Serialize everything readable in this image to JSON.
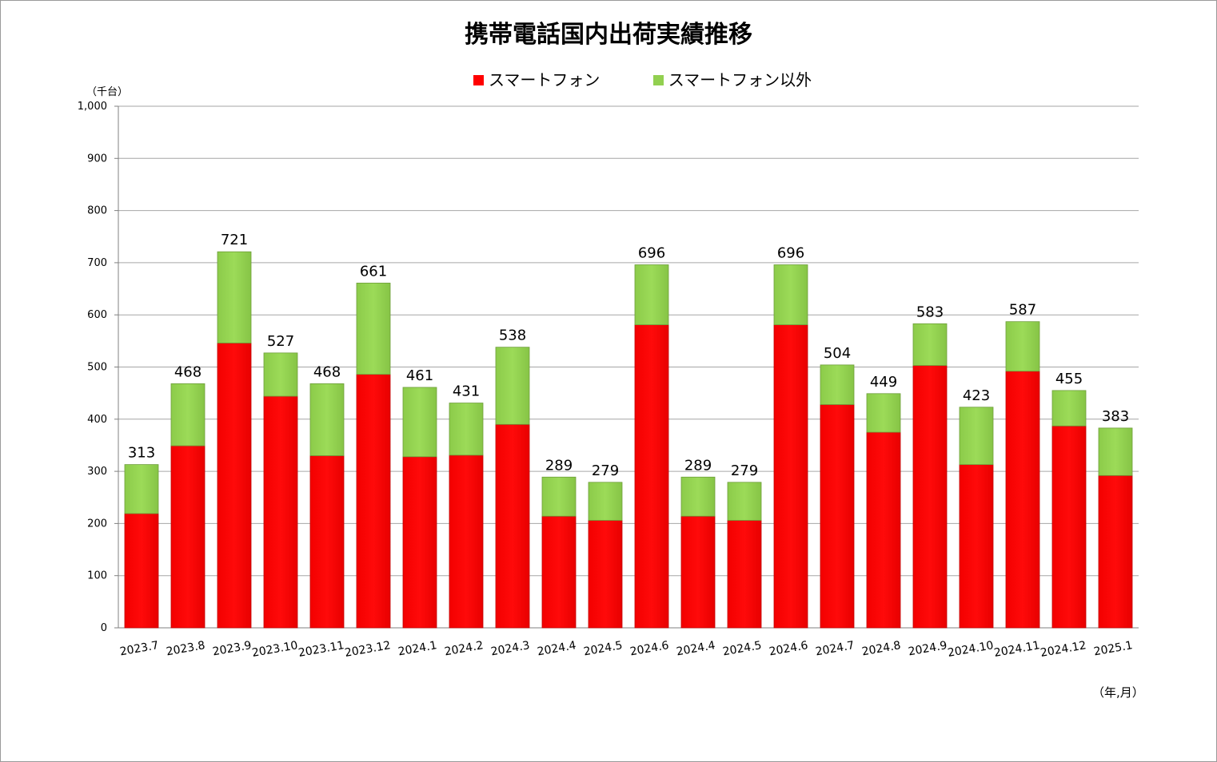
{
  "chart_data": {
    "type": "bar",
    "stacked": true,
    "title": "携帯電話国内出荷実績推移",
    "ylabel": "（千台）",
    "xlabel": "（年,月）",
    "ylim": [
      0,
      1000
    ],
    "yticks": [
      "0",
      "100",
      "200",
      "300",
      "400",
      "500",
      "600",
      "700",
      "800",
      "900",
      "1,000"
    ],
    "grid": true,
    "legend_position": "top",
    "categories": [
      "2023.7",
      "2023.8",
      "2023.9",
      "2023.10",
      "2023.11",
      "2023.12",
      "2024.1",
      "2024.2",
      "2024.3",
      "2024.4",
      "2024.5",
      "2024.6",
      "2024.4",
      "2024.5",
      "2024.6",
      "2024.7",
      "2024.8",
      "2024.9",
      "2024.10",
      "2024.11",
      "2024.12",
      "2025.1"
    ],
    "series": [
      {
        "name": "スマートフォン",
        "color": "#ff0000",
        "values": [
          219,
          349,
          546,
          444,
          330,
          486,
          328,
          331,
          390,
          214,
          206,
          581,
          214,
          206,
          581,
          428,
          375,
          503,
          313,
          492,
          387,
          292
        ]
      },
      {
        "name": "スマートフォン以外",
        "color": "#92d050",
        "values": [
          94,
          119,
          175,
          83,
          138,
          175,
          133,
          100,
          148,
          75,
          73,
          115,
          75,
          73,
          115,
          76,
          74,
          80,
          110,
          95,
          68,
          91
        ]
      }
    ],
    "totals": [
      "313",
      "468",
      "721",
      "527",
      "468",
      "661",
      "461",
      "431",
      "538",
      "289",
      "279",
      "696",
      "289",
      "279",
      "696",
      "504",
      "449",
      "583",
      "423",
      "587",
      "455",
      "383"
    ]
  }
}
